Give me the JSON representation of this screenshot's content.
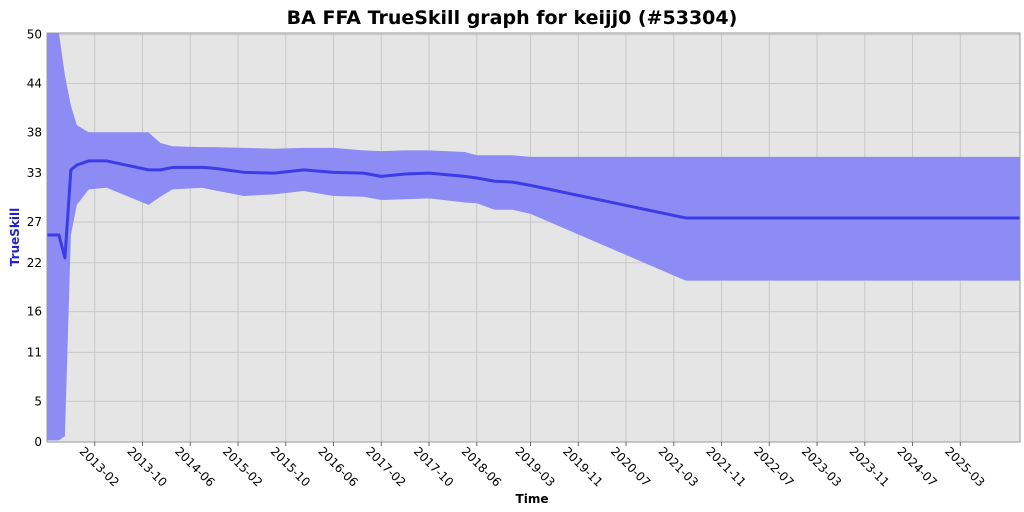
{
  "chart_data": {
    "type": "line",
    "title": "BA FFA TrueSkill graph for keijj0 (#53304)",
    "x_label": "Time",
    "y_label": "TrueSkill",
    "x": [
      "2012-06",
      "2012-08",
      "2012-09",
      "2012-10",
      "2012-11",
      "2013-01",
      "2013-04",
      "2013-11",
      "2014-01",
      "2014-03",
      "2014-08",
      "2014-10",
      "2015-03",
      "2015-08",
      "2016-01",
      "2016-06",
      "2016-11",
      "2017-02",
      "2017-06",
      "2017-10",
      "2018-04",
      "2018-06",
      "2018-09",
      "2018-12",
      "2019-03",
      "2021-05",
      "2026-01"
    ],
    "series": [
      {
        "color": "#3c3ce6",
        "values": [
          25.4,
          25.4,
          22.6,
          33.4,
          34.0,
          34.5,
          34.5,
          33.4,
          33.4,
          33.7,
          33.7,
          33.6,
          33.1,
          33.0,
          33.4,
          33.1,
          33.0,
          32.6,
          32.9,
          33.0,
          32.6,
          32.4,
          32.0,
          31.9,
          31.5,
          27.5,
          27.5
        ]
      }
    ],
    "band": {
      "color": "#8c8cf4",
      "upper": [
        50.2,
        50.2,
        45.0,
        41.3,
        38.9,
        38.0,
        38.0,
        38.0,
        36.7,
        36.3,
        36.2,
        36.2,
        36.1,
        36.0,
        36.1,
        36.1,
        35.8,
        35.7,
        35.8,
        35.8,
        35.6,
        35.2,
        35.2,
        35.2,
        35.0,
        35.0,
        35.0
      ],
      "lower": [
        0.2,
        0.2,
        0.7,
        25.4,
        29.1,
        31.0,
        31.2,
        29.1,
        30.1,
        31.0,
        31.2,
        30.9,
        30.2,
        30.4,
        30.8,
        30.2,
        30.1,
        29.7,
        29.8,
        29.9,
        29.4,
        29.3,
        28.5,
        28.5,
        28.0,
        19.8,
        19.8
      ]
    },
    "xlim": [
      "2012-06",
      "2026-01"
    ],
    "xticks": [
      "2013-02",
      "2013-10",
      "2014-06",
      "2015-02",
      "2015-10",
      "2016-06",
      "2017-02",
      "2017-10",
      "2018-06",
      "2019-03",
      "2019-11",
      "2020-07",
      "2021-03",
      "2021-11",
      "2022-07",
      "2023-03",
      "2023-11",
      "2024-07",
      "2025-03"
    ],
    "ylim": [
      0,
      50.2
    ],
    "yticks": [
      0,
      5,
      11,
      16,
      22,
      27,
      33,
      38,
      44,
      50
    ],
    "grid": true
  }
}
